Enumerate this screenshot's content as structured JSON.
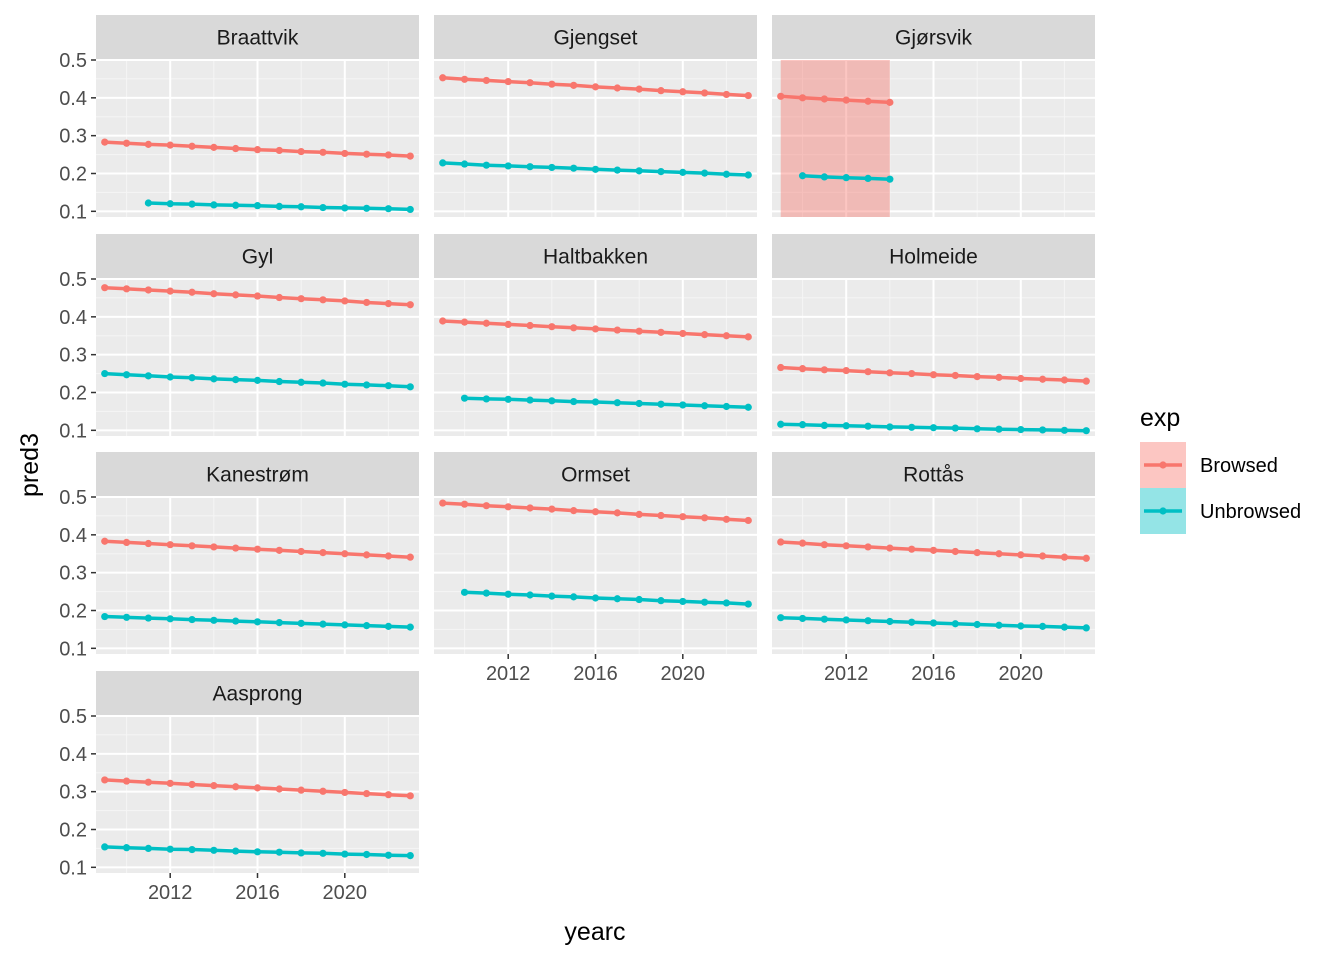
{
  "chart_data": {
    "type": "line",
    "facet_layout": "wrap",
    "xlabel": "yearc",
    "ylabel": "pred3",
    "xlim": [
      2008.6,
      2023.4
    ],
    "ylim": [
      0.085,
      0.5
    ],
    "x_ticks": [
      2012,
      2016,
      2020
    ],
    "y_ticks": [
      0.1,
      0.2,
      0.3,
      0.4,
      0.5
    ],
    "grid": true,
    "legend": {
      "title": "exp",
      "position": "right",
      "entries": [
        {
          "label": "Browsed",
          "color": "#F8766D"
        },
        {
          "label": "Unbrowsed",
          "color": "#00BFC4"
        }
      ]
    },
    "colors": {
      "Browsed": "#F8766D",
      "Unbrowsed": "#00BFC4",
      "highlight": "#F8766D"
    },
    "panels": [
      {
        "name": "Braattvik",
        "series": [
          {
            "name": "Browsed",
            "x": [
              2009,
              2010,
              2011,
              2012,
              2013,
              2014,
              2015,
              2016,
              2017,
              2018,
              2019,
              2020,
              2021,
              2022,
              2023
            ],
            "y": [
              0.283,
              0.28,
              0.277,
              0.275,
              0.272,
              0.269,
              0.266,
              0.263,
              0.261,
              0.258,
              0.256,
              0.253,
              0.251,
              0.249,
              0.246
            ]
          },
          {
            "name": "Unbrowsed",
            "x": [
              2011,
              2012,
              2013,
              2014,
              2015,
              2016,
              2017,
              2018,
              2019,
              2020,
              2021,
              2022,
              2023
            ],
            "y": [
              0.122,
              0.12,
              0.119,
              0.117,
              0.116,
              0.115,
              0.113,
              0.112,
              0.11,
              0.109,
              0.108,
              0.107,
              0.105
            ]
          }
        ]
      },
      {
        "name": "Gjengset",
        "series": [
          {
            "name": "Browsed",
            "x": [
              2009,
              2010,
              2011,
              2012,
              2013,
              2014,
              2015,
              2016,
              2017,
              2018,
              2019,
              2020,
              2021,
              2022,
              2023
            ],
            "y": [
              0.453,
              0.449,
              0.446,
              0.443,
              0.44,
              0.436,
              0.433,
              0.429,
              0.426,
              0.423,
              0.419,
              0.416,
              0.413,
              0.409,
              0.406
            ]
          },
          {
            "name": "Unbrowsed",
            "x": [
              2009,
              2010,
              2011,
              2012,
              2013,
              2014,
              2015,
              2016,
              2017,
              2018,
              2019,
              2020,
              2021,
              2022,
              2023
            ],
            "y": [
              0.228,
              0.225,
              0.222,
              0.22,
              0.218,
              0.216,
              0.214,
              0.211,
              0.209,
              0.207,
              0.205,
              0.203,
              0.201,
              0.198,
              0.196
            ]
          }
        ]
      },
      {
        "name": "Gjørsvik",
        "highlight": [
          2009,
          2014
        ],
        "series": [
          {
            "name": "Browsed",
            "x": [
              2009,
              2010,
              2011,
              2012,
              2013,
              2014
            ],
            "y": [
              0.404,
              0.4,
              0.397,
              0.394,
              0.391,
              0.388
            ]
          },
          {
            "name": "Unbrowsed",
            "x": [
              2010,
              2011,
              2012,
              2013,
              2014
            ],
            "y": [
              0.194,
              0.191,
              0.189,
              0.187,
              0.185
            ]
          }
        ]
      },
      {
        "name": "Gyl",
        "series": [
          {
            "name": "Browsed",
            "x": [
              2009,
              2010,
              2011,
              2012,
              2013,
              2014,
              2015,
              2016,
              2017,
              2018,
              2019,
              2020,
              2021,
              2022,
              2023
            ],
            "y": [
              0.477,
              0.474,
              0.471,
              0.468,
              0.465,
              0.461,
              0.458,
              0.455,
              0.451,
              0.448,
              0.445,
              0.442,
              0.438,
              0.435,
              0.432
            ]
          },
          {
            "name": "Unbrowsed",
            "x": [
              2009,
              2010,
              2011,
              2012,
              2013,
              2014,
              2015,
              2016,
              2017,
              2018,
              2019,
              2020,
              2021,
              2022,
              2023
            ],
            "y": [
              0.25,
              0.247,
              0.244,
              0.241,
              0.239,
              0.236,
              0.234,
              0.232,
              0.229,
              0.227,
              0.225,
              0.222,
              0.22,
              0.218,
              0.215
            ]
          }
        ]
      },
      {
        "name": "Haltbakken",
        "series": [
          {
            "name": "Browsed",
            "x": [
              2009,
              2010,
              2011,
              2012,
              2013,
              2014,
              2015,
              2016,
              2017,
              2018,
              2019,
              2020,
              2021,
              2022,
              2023
            ],
            "y": [
              0.389,
              0.386,
              0.383,
              0.38,
              0.377,
              0.374,
              0.371,
              0.368,
              0.365,
              0.362,
              0.359,
              0.356,
              0.353,
              0.35,
              0.347
            ]
          },
          {
            "name": "Unbrowsed",
            "x": [
              2010,
              2011,
              2012,
              2013,
              2014,
              2015,
              2016,
              2017,
              2018,
              2019,
              2020,
              2021,
              2022,
              2023
            ],
            "y": [
              0.185,
              0.183,
              0.182,
              0.18,
              0.178,
              0.176,
              0.175,
              0.173,
              0.171,
              0.169,
              0.167,
              0.165,
              0.163,
              0.161
            ]
          }
        ]
      },
      {
        "name": "Holmeide",
        "series": [
          {
            "name": "Browsed",
            "x": [
              2009,
              2010,
              2011,
              2012,
              2013,
              2014,
              2015,
              2016,
              2017,
              2018,
              2019,
              2020,
              2021,
              2022,
              2023
            ],
            "y": [
              0.266,
              0.263,
              0.26,
              0.258,
              0.255,
              0.252,
              0.25,
              0.247,
              0.245,
              0.242,
              0.24,
              0.237,
              0.235,
              0.233,
              0.23
            ]
          },
          {
            "name": "Unbrowsed",
            "x": [
              2009,
              2010,
              2011,
              2012,
              2013,
              2014,
              2015,
              2016,
              2017,
              2018,
              2019,
              2020,
              2021,
              2022,
              2023
            ],
            "y": [
              0.116,
              0.115,
              0.113,
              0.112,
              0.111,
              0.109,
              0.108,
              0.107,
              0.106,
              0.104,
              0.103,
              0.102,
              0.101,
              0.1,
              0.099
            ]
          }
        ]
      },
      {
        "name": "Kanestrøm",
        "series": [
          {
            "name": "Browsed",
            "x": [
              2009,
              2010,
              2011,
              2012,
              2013,
              2014,
              2015,
              2016,
              2017,
              2018,
              2019,
              2020,
              2021,
              2022,
              2023
            ],
            "y": [
              0.383,
              0.38,
              0.377,
              0.374,
              0.371,
              0.368,
              0.365,
              0.362,
              0.359,
              0.356,
              0.353,
              0.35,
              0.347,
              0.344,
              0.341
            ]
          },
          {
            "name": "Unbrowsed",
            "x": [
              2009,
              2010,
              2011,
              2012,
              2013,
              2014,
              2015,
              2016,
              2017,
              2018,
              2019,
              2020,
              2021,
              2022,
              2023
            ],
            "y": [
              0.184,
              0.182,
              0.18,
              0.178,
              0.176,
              0.174,
              0.172,
              0.17,
              0.168,
              0.166,
              0.164,
              0.162,
              0.16,
              0.158,
              0.156
            ]
          }
        ]
      },
      {
        "name": "Ormset",
        "series": [
          {
            "name": "Browsed",
            "x": [
              2009,
              2010,
              2011,
              2012,
              2013,
              2014,
              2015,
              2016,
              2017,
              2018,
              2019,
              2020,
              2021,
              2022,
              2023
            ],
            "y": [
              0.484,
              0.481,
              0.477,
              0.474,
              0.471,
              0.468,
              0.464,
              0.461,
              0.458,
              0.454,
              0.451,
              0.448,
              0.445,
              0.441,
              0.438
            ]
          },
          {
            "name": "Unbrowsed",
            "x": [
              2010,
              2011,
              2012,
              2013,
              2014,
              2015,
              2016,
              2017,
              2018,
              2019,
              2020,
              2021,
              2022,
              2023
            ],
            "y": [
              0.248,
              0.246,
              0.243,
              0.241,
              0.238,
              0.236,
              0.233,
              0.231,
              0.229,
              0.226,
              0.224,
              0.222,
              0.22,
              0.217
            ]
          }
        ]
      },
      {
        "name": "Rottås",
        "series": [
          {
            "name": "Browsed",
            "x": [
              2009,
              2010,
              2011,
              2012,
              2013,
              2014,
              2015,
              2016,
              2017,
              2018,
              2019,
              2020,
              2021,
              2022,
              2023
            ],
            "y": [
              0.381,
              0.378,
              0.374,
              0.371,
              0.368,
              0.365,
              0.362,
              0.359,
              0.356,
              0.353,
              0.35,
              0.347,
              0.344,
              0.341,
              0.338
            ]
          },
          {
            "name": "Unbrowsed",
            "x": [
              2009,
              2010,
              2011,
              2012,
              2013,
              2014,
              2015,
              2016,
              2017,
              2018,
              2019,
              2020,
              2021,
              2022,
              2023
            ],
            "y": [
              0.181,
              0.179,
              0.177,
              0.175,
              0.173,
              0.171,
              0.169,
              0.167,
              0.165,
              0.163,
              0.161,
              0.159,
              0.158,
              0.156,
              0.154
            ]
          }
        ]
      },
      {
        "name": "Aasprong",
        "series": [
          {
            "name": "Browsed",
            "x": [
              2009,
              2010,
              2011,
              2012,
              2013,
              2014,
              2015,
              2016,
              2017,
              2018,
              2019,
              2020,
              2021,
              2022,
              2023
            ],
            "y": [
              0.331,
              0.328,
              0.325,
              0.322,
              0.319,
              0.316,
              0.313,
              0.31,
              0.307,
              0.304,
              0.301,
              0.298,
              0.295,
              0.292,
              0.289
            ]
          },
          {
            "name": "Unbrowsed",
            "x": [
              2009,
              2010,
              2011,
              2012,
              2013,
              2014,
              2015,
              2016,
              2017,
              2018,
              2019,
              2020,
              2021,
              2022,
              2023
            ],
            "y": [
              0.154,
              0.152,
              0.15,
              0.148,
              0.147,
              0.145,
              0.143,
              0.141,
              0.14,
              0.138,
              0.137,
              0.135,
              0.134,
              0.132,
              0.131
            ]
          }
        ]
      }
    ]
  }
}
